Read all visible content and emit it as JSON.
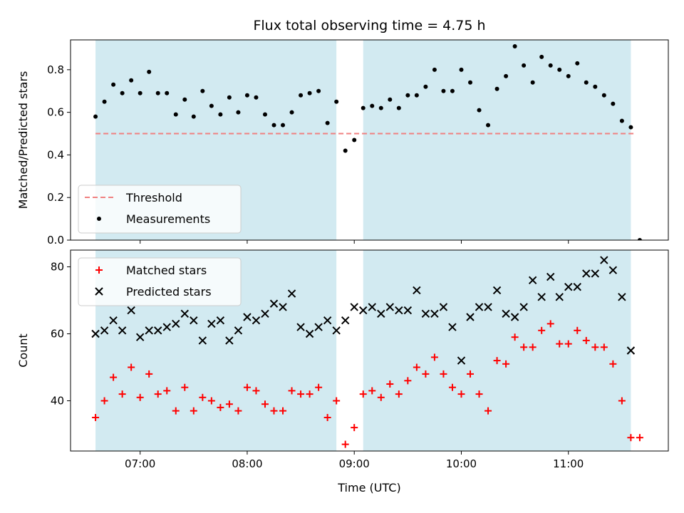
{
  "chart_data": {
    "title": "Flux total observing time = 4.75 h",
    "xlabel": "Time (UTC)",
    "x_ticks": [
      "07:00",
      "08:00",
      "09:00",
      "10:00",
      "11:00"
    ],
    "x_tick_times": [
      "07:00",
      "08:00",
      "09:00",
      "10:00",
      "11:00"
    ],
    "xlim": [
      "06:21",
      "11:56"
    ],
    "shaded_intervals": [
      [
        "06:35",
        "08:50"
      ],
      [
        "09:05",
        "11:35"
      ]
    ],
    "shade_color": "#add8e6",
    "panels": [
      {
        "type": "scatter",
        "ylabel": "Matched/Predicted stars",
        "ylim": [
          0,
          0.94
        ],
        "y_ticks": [
          0.0,
          0.2,
          0.4,
          0.6,
          0.8
        ],
        "legend": {
          "position": "lower-left",
          "entries": [
            "Threshold",
            "Measurements"
          ]
        },
        "threshold": {
          "name": "Threshold",
          "value": 0.5,
          "color": "#f08080",
          "x_range": [
            "06:35",
            "11:38"
          ]
        },
        "series": [
          {
            "name": "Measurements",
            "marker": "dot",
            "color": "#000000",
            "x": [
              "06:35",
              "06:40",
              "06:45",
              "06:50",
              "06:55",
              "07:00",
              "07:05",
              "07:10",
              "07:15",
              "07:20",
              "07:25",
              "07:30",
              "07:35",
              "07:40",
              "07:45",
              "07:50",
              "07:55",
              "08:00",
              "08:05",
              "08:10",
              "08:15",
              "08:20",
              "08:25",
              "08:30",
              "08:35",
              "08:40",
              "08:45",
              "08:50",
              "08:55",
              "09:00",
              "09:05",
              "09:10",
              "09:15",
              "09:20",
              "09:25",
              "09:30",
              "09:35",
              "09:40",
              "09:45",
              "09:50",
              "09:55",
              "10:00",
              "10:05",
              "10:10",
              "10:15",
              "10:20",
              "10:25",
              "10:30",
              "10:35",
              "10:40",
              "10:45",
              "10:50",
              "10:55",
              "11:00",
              "11:05",
              "11:10",
              "11:15",
              "11:20",
              "11:25",
              "11:30",
              "11:35",
              "11:40"
            ],
            "y": [
              0.58,
              0.65,
              0.73,
              0.69,
              0.75,
              0.69,
              0.79,
              0.69,
              0.69,
              0.59,
              0.66,
              0.58,
              0.7,
              0.63,
              0.59,
              0.67,
              0.6,
              0.68,
              0.67,
              0.59,
              0.54,
              0.54,
              0.6,
              0.68,
              0.69,
              0.7,
              0.55,
              0.65,
              0.42,
              0.47,
              0.62,
              0.63,
              0.62,
              0.66,
              0.62,
              0.68,
              0.68,
              0.72,
              0.8,
              0.7,
              0.7,
              0.8,
              0.74,
              0.61,
              0.54,
              0.71,
              0.77,
              0.91,
              0.82,
              0.74,
              0.86,
              0.82,
              0.8,
              0.77,
              0.83,
              0.74,
              0.72,
              0.68,
              0.64,
              0.56,
              0.53,
              0.0
            ]
          }
        ]
      },
      {
        "type": "scatter",
        "ylabel": "Count",
        "ylim": [
          25,
          85
        ],
        "y_ticks": [
          40,
          60,
          80
        ],
        "legend": {
          "position": "top-left",
          "entries": [
            "Matched stars",
            "Predicted stars"
          ]
        },
        "series": [
          {
            "name": "Matched stars",
            "marker": "plus",
            "color": "#ff0000",
            "x": [
              "06:35",
              "06:40",
              "06:45",
              "06:50",
              "06:55",
              "07:00",
              "07:05",
              "07:10",
              "07:15",
              "07:20",
              "07:25",
              "07:30",
              "07:35",
              "07:40",
              "07:45",
              "07:50",
              "07:55",
              "08:00",
              "08:05",
              "08:10",
              "08:15",
              "08:20",
              "08:25",
              "08:30",
              "08:35",
              "08:40",
              "08:45",
              "08:50",
              "08:55",
              "09:00",
              "09:05",
              "09:10",
              "09:15",
              "09:20",
              "09:25",
              "09:30",
              "09:35",
              "09:40",
              "09:45",
              "09:50",
              "09:55",
              "10:00",
              "10:05",
              "10:10",
              "10:15",
              "10:20",
              "10:25",
              "10:30",
              "10:35",
              "10:40",
              "10:45",
              "10:50",
              "10:55",
              "11:00",
              "11:05",
              "11:10",
              "11:15",
              "11:20",
              "11:25",
              "11:30",
              "11:35",
              "11:40"
            ],
            "y": [
              35,
              40,
              47,
              42,
              50,
              41,
              48,
              42,
              43,
              37,
              44,
              37,
              41,
              40,
              38,
              39,
              37,
              44,
              43,
              39,
              37,
              37,
              43,
              42,
              42,
              44,
              35,
              40,
              27,
              32,
              42,
              43,
              41,
              45,
              42,
              46,
              50,
              48,
              53,
              48,
              44,
              42,
              48,
              42,
              37,
              52,
              51,
              59,
              56,
              56,
              61,
              63,
              57,
              57,
              61,
              58,
              56,
              56,
              51,
              40,
              29,
              29
            ]
          },
          {
            "name": "Predicted stars",
            "marker": "x",
            "color": "#000000",
            "x": [
              "06:35",
              "06:40",
              "06:45",
              "06:50",
              "06:55",
              "07:00",
              "07:05",
              "07:10",
              "07:15",
              "07:20",
              "07:25",
              "07:30",
              "07:35",
              "07:40",
              "07:45",
              "07:50",
              "07:55",
              "08:00",
              "08:05",
              "08:10",
              "08:15",
              "08:20",
              "08:25",
              "08:30",
              "08:35",
              "08:40",
              "08:45",
              "08:50",
              "08:55",
              "09:00",
              "09:05",
              "09:10",
              "09:15",
              "09:20",
              "09:25",
              "09:30",
              "09:35",
              "09:40",
              "09:45",
              "09:50",
              "09:55",
              "10:00",
              "10:05",
              "10:10",
              "10:15",
              "10:20",
              "10:25",
              "10:30",
              "10:35",
              "10:40",
              "10:45",
              "10:50",
              "10:55",
              "11:00",
              "11:05",
              "11:10",
              "11:15",
              "11:20",
              "11:25",
              "11:30",
              "11:35"
            ],
            "y": [
              60,
              61,
              64,
              61,
              67,
              59,
              61,
              61,
              62,
              63,
              66,
              64,
              58,
              63,
              64,
              58,
              61,
              65,
              64,
              66,
              69,
              68,
              72,
              62,
              60,
              62,
              64,
              61,
              64,
              68,
              67,
              68,
              66,
              68,
              67,
              67,
              73,
              66,
              66,
              68,
              62,
              52,
              65,
              68,
              68,
              73,
              66,
              65,
              68,
              76,
              71,
              77,
              71,
              74,
              74,
              78,
              78,
              82,
              79,
              71,
              55
            ]
          }
        ]
      }
    ]
  }
}
